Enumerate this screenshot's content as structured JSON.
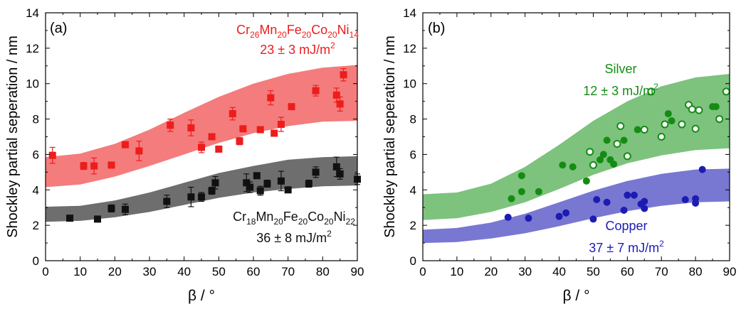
{
  "chart_data": [
    {
      "type": "scatter",
      "panel_label": "(a)",
      "xlabel": "β / °",
      "ylabel": "Shockley partial seperation / nm",
      "xlim": [
        0,
        90
      ],
      "ylim": [
        0,
        14
      ],
      "xticks": [
        "0",
        "10",
        "20",
        "30",
        "40",
        "50",
        "60",
        "70",
        "80",
        "90"
      ],
      "yticks": [
        "0",
        "2",
        "4",
        "6",
        "8",
        "10",
        "12",
        "14"
      ],
      "grid": false,
      "series": [
        {
          "name": "Cr26Mn20Fe20Co20Ni14",
          "name_parts": [
            [
              "Cr",
              "26"
            ],
            [
              "Mn",
              "20"
            ],
            [
              "Fe",
              "20"
            ],
            [
              "Co",
              "20"
            ],
            [
              "Ni",
              "14"
            ]
          ],
          "energy": "23 ± 3 mJ/m",
          "energy_sup": "2",
          "color": "#ee1c1c",
          "band_color": "#f47c7c",
          "marker": "square",
          "band": {
            "x": [
              0,
              10,
              20,
              30,
              40,
              50,
              60,
              70,
              80,
              90
            ],
            "upper": [
              5.85,
              6.05,
              6.6,
              7.4,
              8.35,
              9.25,
              10.0,
              10.55,
              10.9,
              11.05
            ],
            "lower": [
              4.15,
              4.3,
              4.75,
              5.35,
              6.0,
              6.65,
              7.2,
              7.6,
              7.85,
              7.9
            ]
          },
          "points": [
            {
              "x": 2,
              "y": 5.95,
              "err": 0.45
            },
            {
              "x": 11,
              "y": 5.35,
              "err": 0.2
            },
            {
              "x": 14,
              "y": 5.35,
              "err": 0.45
            },
            {
              "x": 19,
              "y": 5.4,
              "err": 0.15
            },
            {
              "x": 23,
              "y": 6.55,
              "err": 0.15
            },
            {
              "x": 27,
              "y": 6.2,
              "err": 0.55
            },
            {
              "x": 36,
              "y": 7.65,
              "err": 0.35
            },
            {
              "x": 42,
              "y": 7.5,
              "err": 0.45
            },
            {
              "x": 45,
              "y": 6.4,
              "err": 0.3
            },
            {
              "x": 48,
              "y": 7.0,
              "err": 0.15
            },
            {
              "x": 50,
              "y": 6.3,
              "err": 0.15
            },
            {
              "x": 54,
              "y": 8.3,
              "err": 0.35
            },
            {
              "x": 56,
              "y": 6.75,
              "err": 0.2
            },
            {
              "x": 57,
              "y": 7.45,
              "err": 0.15
            },
            {
              "x": 62,
              "y": 7.4,
              "err": 0.15
            },
            {
              "x": 65,
              "y": 9.2,
              "err": 0.4
            },
            {
              "x": 66,
              "y": 7.2,
              "err": 0.15
            },
            {
              "x": 68,
              "y": 7.7,
              "err": 0.4
            },
            {
              "x": 71,
              "y": 8.7,
              "err": 0.15
            },
            {
              "x": 78,
              "y": 9.6,
              "err": 0.3
            },
            {
              "x": 84,
              "y": 9.35,
              "err": 0.4
            },
            {
              "x": 85,
              "y": 8.85,
              "err": 0.4
            },
            {
              "x": 86,
              "y": 10.5,
              "err": 0.35
            }
          ]
        },
        {
          "name": "Cr18Mn20Fe20Co20Ni22",
          "name_parts": [
            [
              "Cr",
              "18"
            ],
            [
              "Mn",
              "20"
            ],
            [
              "Fe",
              "20"
            ],
            [
              "Co",
              "20"
            ],
            [
              "Ni",
              "22"
            ]
          ],
          "energy": "36 ± 8 mJ/m",
          "energy_sup": "2",
          "color": "#111111",
          "band_color": "#6e6e6e",
          "marker": "square",
          "band": {
            "x": [
              0,
              10,
              20,
              30,
              40,
              50,
              60,
              70,
              80,
              90
            ],
            "upper": [
              3.05,
              3.1,
              3.4,
              3.85,
              4.4,
              4.95,
              5.35,
              5.7,
              5.85,
              5.9
            ],
            "lower": [
              2.2,
              2.25,
              2.45,
              2.75,
              3.15,
              3.55,
              3.85,
              4.05,
              4.2,
              4.25
            ]
          },
          "points": [
            {
              "x": 7,
              "y": 2.4,
              "err": 0.12
            },
            {
              "x": 15,
              "y": 2.35,
              "err": 0.1
            },
            {
              "x": 19,
              "y": 2.95,
              "err": 0.2
            },
            {
              "x": 23,
              "y": 2.9,
              "err": 0.3
            },
            {
              "x": 35,
              "y": 3.35,
              "err": 0.35
            },
            {
              "x": 42,
              "y": 3.6,
              "err": 0.55
            },
            {
              "x": 45,
              "y": 3.6,
              "err": 0.25
            },
            {
              "x": 48,
              "y": 3.95,
              "err": 0.2
            },
            {
              "x": 49,
              "y": 4.4,
              "err": 0.35
            },
            {
              "x": 58,
              "y": 4.4,
              "err": 0.5
            },
            {
              "x": 59,
              "y": 4.15,
              "err": 0.3
            },
            {
              "x": 61,
              "y": 4.8,
              "err": 0.15
            },
            {
              "x": 62,
              "y": 3.95,
              "err": 0.25
            },
            {
              "x": 64,
              "y": 4.35,
              "err": 0.2
            },
            {
              "x": 68,
              "y": 4.5,
              "err": 0.55
            },
            {
              "x": 70,
              "y": 4.0,
              "err": 0.15
            },
            {
              "x": 76,
              "y": 4.35,
              "err": 0.2
            },
            {
              "x": 78,
              "y": 5.0,
              "err": 0.3
            },
            {
              "x": 84,
              "y": 5.3,
              "err": 0.55
            },
            {
              "x": 85,
              "y": 4.9,
              "err": 0.3
            },
            {
              "x": 90,
              "y": 4.6,
              "err": 0.3
            }
          ]
        }
      ]
    },
    {
      "type": "scatter",
      "panel_label": "(b)",
      "xlabel": "β / °",
      "ylabel": "Shockley partial seperation / nm",
      "xlim": [
        0,
        90
      ],
      "ylim": [
        0,
        14
      ],
      "xticks": [
        "0",
        "10",
        "20",
        "30",
        "40",
        "50",
        "60",
        "70",
        "80",
        "90"
      ],
      "yticks": [
        "0",
        "2",
        "4",
        "6",
        "8",
        "10",
        "12",
        "14"
      ],
      "grid": false,
      "series": [
        {
          "name": "Silver",
          "energy": "12 ± 3 mJ/m",
          "energy_sup": "2",
          "color": "#148c14",
          "band_color": "#7dc27d",
          "marker": "circle",
          "band": {
            "x": [
              0,
              10,
              20,
              30,
              40,
              50,
              60,
              70,
              80,
              90
            ],
            "upper": [
              3.75,
              3.85,
              4.35,
              5.3,
              6.55,
              7.9,
              9.0,
              9.85,
              10.35,
              10.55
            ],
            "lower": [
              2.3,
              2.4,
              2.75,
              3.3,
              4.05,
              4.85,
              5.5,
              5.95,
              6.25,
              6.35
            ]
          },
          "points": [
            {
              "x": 26,
              "y": 3.5,
              "open": false
            },
            {
              "x": 29,
              "y": 3.9,
              "open": false
            },
            {
              "x": 29,
              "y": 4.8,
              "open": false
            },
            {
              "x": 34,
              "y": 3.9,
              "open": false
            },
            {
              "x": 41,
              "y": 5.4,
              "open": false
            },
            {
              "x": 44,
              "y": 5.3,
              "open": false
            },
            {
              "x": 48,
              "y": 4.5,
              "open": false
            },
            {
              "x": 49,
              "y": 6.15,
              "open": true
            },
            {
              "x": 50,
              "y": 5.4,
              "open": true
            },
            {
              "x": 52,
              "y": 5.7,
              "open": false
            },
            {
              "x": 53,
              "y": 6.0,
              "open": false
            },
            {
              "x": 54,
              "y": 6.8,
              "open": false
            },
            {
              "x": 55,
              "y": 5.7,
              "open": false
            },
            {
              "x": 56,
              "y": 5.45,
              "open": false
            },
            {
              "x": 57,
              "y": 6.6,
              "open": true
            },
            {
              "x": 58,
              "y": 7.6,
              "open": true
            },
            {
              "x": 59,
              "y": 6.8,
              "open": false
            },
            {
              "x": 60,
              "y": 5.9,
              "open": true
            },
            {
              "x": 63,
              "y": 7.4,
              "open": false
            },
            {
              "x": 65,
              "y": 7.4,
              "open": true
            },
            {
              "x": 67,
              "y": 9.55,
              "open": true
            },
            {
              "x": 70,
              "y": 7.0,
              "open": true
            },
            {
              "x": 71,
              "y": 7.7,
              "open": true
            },
            {
              "x": 72,
              "y": 8.3,
              "open": false
            },
            {
              "x": 73,
              "y": 7.9,
              "open": false
            },
            {
              "x": 76,
              "y": 7.7,
              "open": true
            },
            {
              "x": 78,
              "y": 8.8,
              "open": true
            },
            {
              "x": 79,
              "y": 8.55,
              "open": true
            },
            {
              "x": 80,
              "y": 7.45,
              "open": true
            },
            {
              "x": 81,
              "y": 8.5,
              "open": true
            },
            {
              "x": 85,
              "y": 8.7,
              "open": false
            },
            {
              "x": 86,
              "y": 8.7,
              "open": false
            },
            {
              "x": 87,
              "y": 8.0,
              "open": true
            },
            {
              "x": 89,
              "y": 9.55,
              "open": true
            }
          ]
        },
        {
          "name": "Copper",
          "energy": "37 ± 7 mJ/m",
          "energy_sup": "2",
          "color": "#1c1cb4",
          "band_color": "#7878d2",
          "marker": "circle",
          "band": {
            "x": [
              0,
              10,
              20,
              30,
              40,
              50,
              60,
              70,
              80,
              90
            ],
            "upper": [
              1.75,
              1.85,
              2.15,
              2.65,
              3.3,
              3.95,
              4.5,
              4.9,
              5.15,
              5.2
            ],
            "lower": [
              1.0,
              1.05,
              1.25,
              1.55,
              1.95,
              2.4,
              2.8,
              3.1,
              3.3,
              3.35
            ]
          },
          "points": [
            {
              "x": 25,
              "y": 2.45
            },
            {
              "x": 31,
              "y": 2.4
            },
            {
              "x": 40,
              "y": 2.5
            },
            {
              "x": 42,
              "y": 2.7
            },
            {
              "x": 50,
              "y": 2.35
            },
            {
              "x": 51,
              "y": 3.45
            },
            {
              "x": 54,
              "y": 3.3
            },
            {
              "x": 59,
              "y": 2.85
            },
            {
              "x": 60,
              "y": 3.7
            },
            {
              "x": 62,
              "y": 3.7
            },
            {
              "x": 64,
              "y": 3.2
            },
            {
              "x": 65,
              "y": 3.35
            },
            {
              "x": 65,
              "y": 2.95
            },
            {
              "x": 77,
              "y": 3.45
            },
            {
              "x": 80,
              "y": 3.25
            },
            {
              "x": 80,
              "y": 3.5
            },
            {
              "x": 82,
              "y": 5.15
            }
          ]
        }
      ]
    }
  ]
}
